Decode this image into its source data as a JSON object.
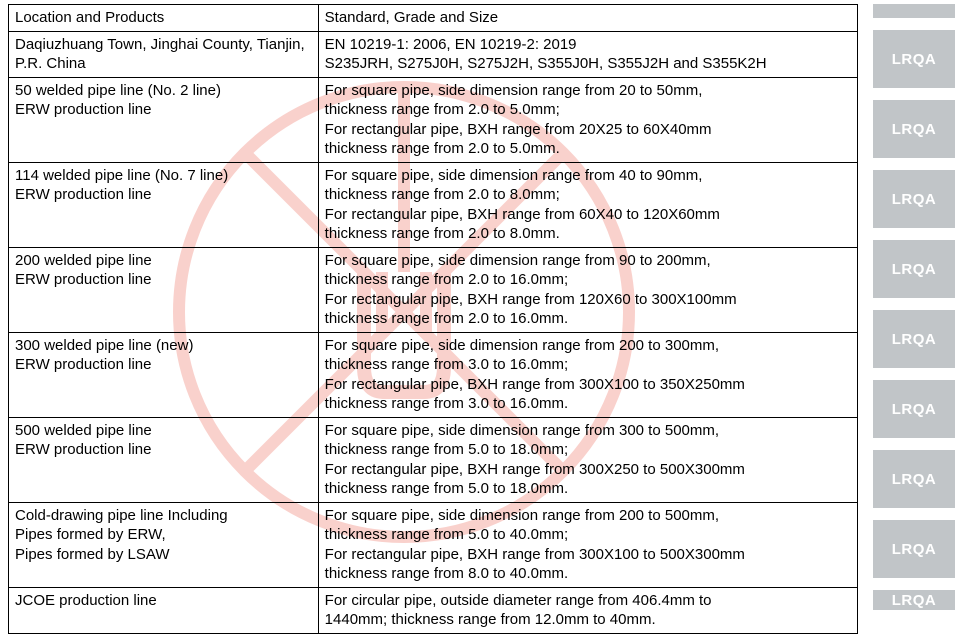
{
  "table": {
    "header": {
      "left": "Location and Products",
      "right": "Standard, Grade and Size"
    },
    "rows": [
      {
        "left": "Daqiuzhuang Town, Jinghai County, Tianjin, P.R. China",
        "right": "EN 10219-1: 2006, EN 10219-2: 2019\nS235JRH, S275J0H, S275J2H, S355J0H, S355J2H and S355K2H"
      },
      {
        "left": "50 welded pipe line (No. 2 line)\nERW production line",
        "right": "For square pipe, side dimension range from 20 to 50mm,\nthickness range from 2.0 to 5.0mm;\nFor rectangular pipe, BXH range from 20X25 to 60X40mm\nthickness range from 2.0 to 5.0mm."
      },
      {
        "left": "114 welded pipe line (No. 7 line)\nERW production line",
        "right": "For square pipe, side dimension range from 40 to 90mm,\nthickness range from 2.0 to 8.0mm;\nFor rectangular pipe, BXH range from 60X40 to 120X60mm\nthickness range from 2.0 to 8.0mm."
      },
      {
        "left": "200 welded pipe line\nERW production line",
        "right": "For square pipe, side dimension range from 90 to 200mm,\nthickness range from 2.0 to 16.0mm;\nFor rectangular pipe, BXH range from 120X60 to 300X100mm\nthickness range from 2.0 to 16.0mm."
      },
      {
        "left": "300 welded pipe line (new)\nERW production line",
        "right": "For square pipe, side dimension range from 200 to 300mm,\nthickness range from 3.0 to 16.0mm;\nFor rectangular pipe, BXH range from 300X100 to 350X250mm\nthickness range from 3.0 to 16.0mm."
      },
      {
        "left": "500 welded pipe line\nERW production line",
        "right": "For square pipe, side dimension range from 300 to 500mm,\nthickness range from 5.0 to 18.0mm;\nFor rectangular pipe, BXH range from 300X250 to 500X300mm\nthickness range from 5.0 to 18.0mm."
      },
      {
        "left": "Cold-drawing pipe line Including\nPipes formed by ERW,\nPipes formed by LSAW",
        "right": "For square pipe, side dimension range from 200 to 500mm,\nthickness range from 5.0 to 40.0mm;\nFor rectangular pipe, BXH range from 300X100 to 500X300mm\nthickness range from 8.0 to 40.0mm."
      },
      {
        "left": "JCOE production line",
        "right": "For circular pipe, outside diameter range from 406.4mm to\n1440mm; thickness range from 12.0mm to 40mm."
      }
    ]
  },
  "sidebar": {
    "badge_text": "LRQA",
    "badge_count": 9,
    "badge_bg": "#c1c5c8",
    "badge_fg": "#ffffff"
  },
  "watermark": {
    "stroke": "#e84b3a",
    "stroke_width": 12,
    "radius": 230
  }
}
